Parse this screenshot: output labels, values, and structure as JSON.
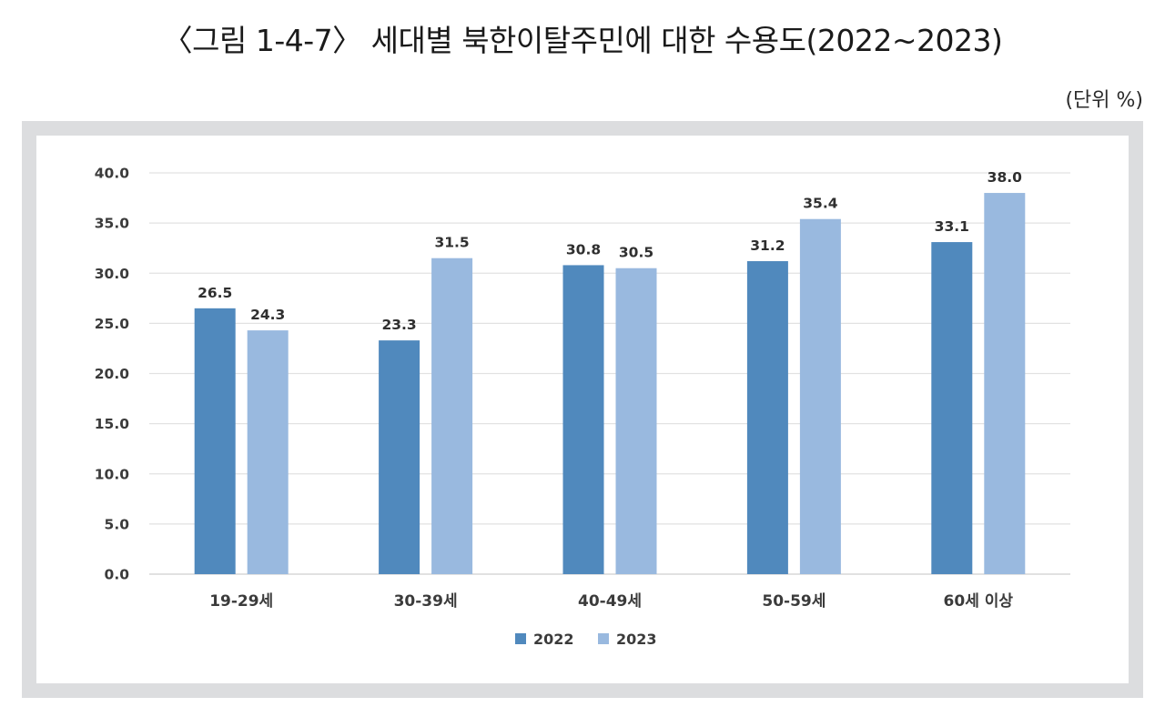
{
  "figure": {
    "title": "〈그림 1-4-7〉 세대별 북한이탈주민에 대한 수용도(2022~2023)",
    "unit": "(단위 %)"
  },
  "chart_data": {
    "type": "bar",
    "title": "〈그림 1-4-7〉 세대별 북한이탈주민에 대한 수용도(2022~2023)",
    "xlabel": "",
    "ylabel": "",
    "ylim": [
      0,
      40
    ],
    "ytick_step": 5,
    "yticks": [
      "0.0",
      "5.0",
      "10.0",
      "15.0",
      "20.0",
      "25.0",
      "30.0",
      "35.0",
      "40.0"
    ],
    "categories": [
      "19-29세",
      "30-39세",
      "40-49세",
      "50-59세",
      "60세 이상"
    ],
    "series": [
      {
        "name": "2022",
        "color": "#5089bd",
        "values": [
          26.5,
          23.3,
          30.8,
          31.2,
          33.1
        ]
      },
      {
        "name": "2023",
        "color": "#99b9df",
        "values": [
          24.3,
          31.5,
          30.5,
          35.4,
          38.0
        ]
      }
    ],
    "legend_position": "bottom",
    "grid": true
  }
}
